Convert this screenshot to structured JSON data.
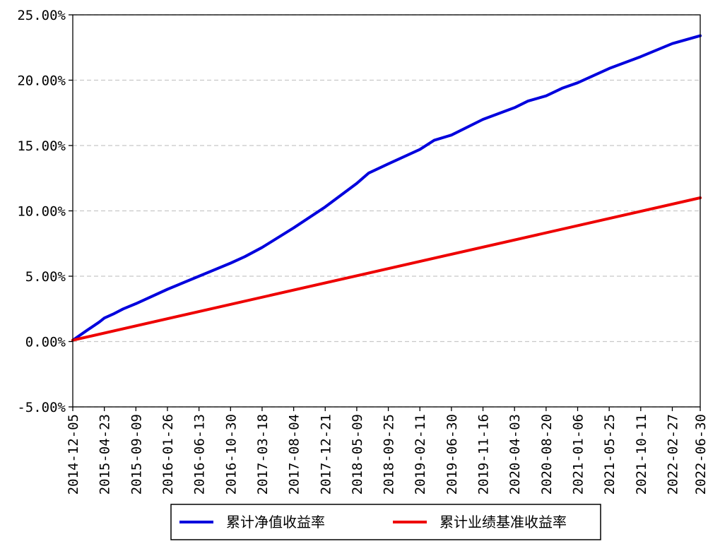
{
  "chart_data": {
    "type": "line",
    "title": "",
    "xlabel": "",
    "ylabel": "",
    "ylim": [
      -5,
      25
    ],
    "y_ticks": [
      "-5.00%",
      "0.00%",
      "5.00%",
      "10.00%",
      "15.00%",
      "20.00%",
      "25.00%"
    ],
    "y_tick_values": [
      -5,
      0,
      5,
      10,
      15,
      20,
      25
    ],
    "x_ticks": [
      "2014-12-05",
      "2015-04-23",
      "2015-09-09",
      "2016-01-26",
      "2016-06-13",
      "2016-10-30",
      "2017-03-18",
      "2017-08-04",
      "2017-12-21",
      "2018-05-09",
      "2018-09-25",
      "2019-02-11",
      "2019-06-30",
      "2019-11-16",
      "2020-04-03",
      "2020-08-20",
      "2021-01-06",
      "2021-05-25",
      "2021-10-11",
      "2022-02-27",
      "2022-06-30"
    ],
    "grid": "horizontal-dashed",
    "legend_position": "bottom-center",
    "series": [
      {
        "name": "累计净值收益率",
        "color": "#0000dd",
        "x": [
          "2014-12-05",
          "2015-02-01",
          "2015-04-01",
          "2015-04-23",
          "2015-06-01",
          "2015-07-15",
          "2015-09-09",
          "2016-01-26",
          "2016-06-13",
          "2016-10-30",
          "2017-01-01",
          "2017-03-18",
          "2017-08-04",
          "2017-12-21",
          "2018-05-09",
          "2018-07-01",
          "2018-09-25",
          "2019-02-11",
          "2019-04-15",
          "2019-06-30",
          "2019-11-16",
          "2020-04-03",
          "2020-06-01",
          "2020-08-20",
          "2020-11-01",
          "2021-01-06",
          "2021-05-25",
          "2021-10-11",
          "2022-02-27",
          "2022-06-30"
        ],
        "values": [
          0.1,
          0.8,
          1.5,
          1.8,
          2.1,
          2.5,
          2.9,
          4.0,
          5.0,
          6.0,
          6.5,
          7.2,
          8.7,
          10.3,
          12.1,
          12.9,
          13.6,
          14.7,
          15.4,
          15.8,
          17.0,
          17.9,
          18.4,
          18.8,
          19.4,
          19.8,
          20.9,
          21.8,
          22.8,
          23.4
        ]
      },
      {
        "name": "累计业绩基准收益率",
        "color": "#ee0000",
        "x": [
          "2014-12-05",
          "2022-06-30"
        ],
        "values": [
          0.1,
          11.0
        ]
      }
    ]
  }
}
